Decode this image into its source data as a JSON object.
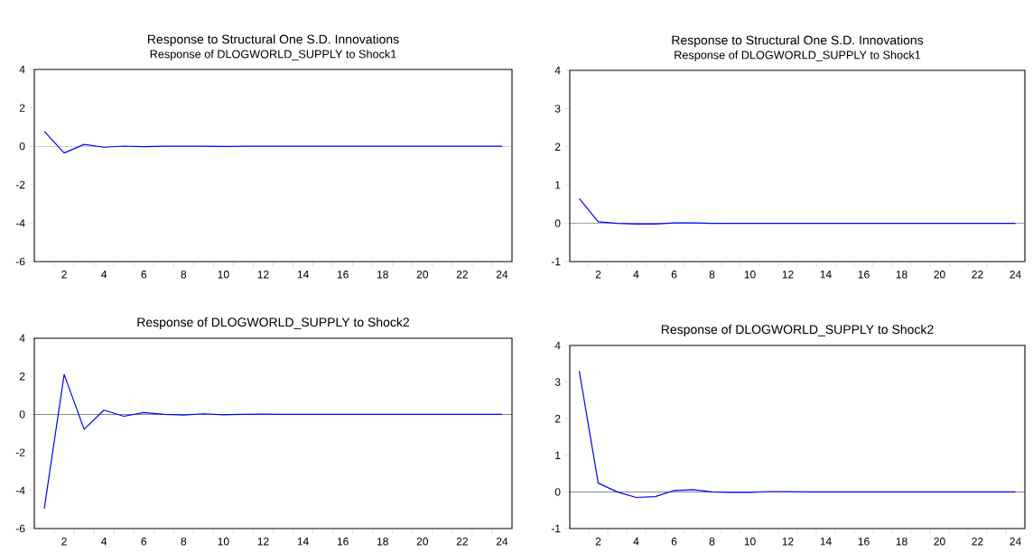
{
  "chart_data": [
    {
      "type": "line",
      "title": "Response to Structural One S.D. Innovations",
      "subtitle": "Response of DLOGWORLD_SUPPLY to Shock1",
      "x": [
        1,
        2,
        3,
        4,
        5,
        6,
        7,
        8,
        9,
        10,
        11,
        12,
        13,
        14,
        15,
        16,
        17,
        18,
        19,
        20,
        21,
        22,
        23,
        24
      ],
      "series": [
        {
          "color": "#0000ff",
          "values": [
            0.78,
            -0.35,
            0.1,
            -0.05,
            0.01,
            -0.02,
            0,
            0,
            0,
            -0.01,
            0,
            0,
            0,
            0,
            0,
            0,
            0,
            0,
            0,
            0,
            0,
            0,
            0,
            0
          ]
        }
      ],
      "xlim": [
        0.5,
        24.5
      ],
      "xticks": [
        {
          "value": 1.5,
          "label": null
        },
        2,
        {
          "value": 2.5,
          "label": null
        },
        {
          "value": 3.5,
          "label": null
        },
        4,
        {
          "value": 4.5,
          "label": null
        },
        {
          "value": 5.5,
          "label": null
        },
        6,
        {
          "value": 6.5,
          "label": null
        },
        {
          "value": 7.5,
          "label": null
        },
        8,
        {
          "value": 8.5,
          "label": null
        },
        {
          "value": 9.5,
          "label": null
        },
        10,
        {
          "value": 10.5,
          "label": null
        },
        {
          "value": 11.5,
          "label": null
        },
        12,
        {
          "value": 12.5,
          "label": null
        },
        {
          "value": 13.5,
          "label": null
        },
        14,
        {
          "value": 14.5,
          "label": null
        },
        {
          "value": 15.5,
          "label": null
        },
        16,
        {
          "value": 16.5,
          "label": null
        },
        {
          "value": 17.5,
          "label": null
        },
        18,
        {
          "value": 18.5,
          "label": null
        },
        {
          "value": 19.5,
          "label": null
        },
        20,
        {
          "value": 20.5,
          "label": null
        },
        {
          "value": 21.5,
          "label": null
        },
        22,
        {
          "value": 22.5,
          "label": null
        },
        {
          "value": 23.5,
          "label": null
        },
        24
      ],
      "ylim": [
        -6,
        4
      ],
      "yticks": [
        -6,
        -4,
        -2,
        0,
        2,
        4
      ],
      "ref_lines": [
        {
          "axis": "y",
          "value": 0,
          "color": "#808080"
        }
      ],
      "grid": false
    },
    {
      "type": "line",
      "title": "Response to Structural One S.D. Innovations",
      "subtitle": "Response of DLOGWORLD_SUPPLY to Shock1",
      "x": [
        1,
        2,
        3,
        4,
        5,
        6,
        7,
        8,
        9,
        10,
        11,
        12,
        13,
        14,
        15,
        16,
        17,
        18,
        19,
        20,
        21,
        22,
        23,
        24
      ],
      "series": [
        {
          "color": "#0000ff",
          "values": [
            0.65,
            0.04,
            0.0,
            -0.02,
            -0.02,
            0.01,
            0.01,
            0,
            0,
            0,
            0,
            0,
            0,
            0,
            0,
            0,
            0,
            0,
            0,
            0,
            0,
            0,
            0,
            0
          ]
        }
      ],
      "xlim": [
        0.5,
        24.5
      ],
      "xticks": [
        {
          "value": 1.5,
          "label": null
        },
        2,
        {
          "value": 2.5,
          "label": null
        },
        {
          "value": 3.5,
          "label": null
        },
        4,
        {
          "value": 4.5,
          "label": null
        },
        {
          "value": 5.5,
          "label": null
        },
        6,
        {
          "value": 6.5,
          "label": null
        },
        {
          "value": 7.5,
          "label": null
        },
        8,
        {
          "value": 8.5,
          "label": null
        },
        {
          "value": 9.5,
          "label": null
        },
        10,
        {
          "value": 10.5,
          "label": null
        },
        {
          "value": 11.5,
          "label": null
        },
        12,
        {
          "value": 12.5,
          "label": null
        },
        {
          "value": 13.5,
          "label": null
        },
        14,
        {
          "value": 14.5,
          "label": null
        },
        {
          "value": 15.5,
          "label": null
        },
        16,
        {
          "value": 16.5,
          "label": null
        },
        {
          "value": 17.5,
          "label": null
        },
        18,
        {
          "value": 18.5,
          "label": null
        },
        {
          "value": 19.5,
          "label": null
        },
        20,
        {
          "value": 20.5,
          "label": null
        },
        {
          "value": 21.5,
          "label": null
        },
        22,
        {
          "value": 22.5,
          "label": null
        },
        {
          "value": 23.5,
          "label": null
        },
        24
      ],
      "ylim": [
        -1,
        4
      ],
      "yticks": [
        -1,
        0,
        1,
        2,
        3,
        4
      ],
      "ref_lines": [
        {
          "axis": "y",
          "value": 0,
          "color": "#404040"
        }
      ],
      "grid": false
    },
    {
      "type": "line",
      "title": "Response of DLOGWORLD_SUPPLY to Shock2",
      "x": [
        1,
        2,
        3,
        4,
        5,
        6,
        7,
        8,
        9,
        10,
        11,
        12,
        13,
        14,
        15,
        16,
        17,
        18,
        19,
        20,
        21,
        22,
        23,
        24
      ],
      "series": [
        {
          "color": "#0000ff",
          "values": [
            -4.95,
            2.1,
            -0.78,
            0.22,
            -0.1,
            0.1,
            0,
            -0.03,
            0.03,
            -0.02,
            0,
            0.01,
            0,
            0,
            0,
            0,
            0,
            0,
            0,
            0,
            0,
            0,
            0,
            0
          ]
        }
      ],
      "xlim": [
        0.5,
        24.5
      ],
      "xticks": [
        {
          "value": 1.5,
          "label": null
        },
        2,
        {
          "value": 2.5,
          "label": null
        },
        {
          "value": 3.5,
          "label": null
        },
        4,
        {
          "value": 4.5,
          "label": null
        },
        {
          "value": 5.5,
          "label": null
        },
        6,
        {
          "value": 6.5,
          "label": null
        },
        {
          "value": 7.5,
          "label": null
        },
        8,
        {
          "value": 8.5,
          "label": null
        },
        {
          "value": 9.5,
          "label": null
        },
        10,
        {
          "value": 10.5,
          "label": null
        },
        {
          "value": 11.5,
          "label": null
        },
        12,
        {
          "value": 12.5,
          "label": null
        },
        {
          "value": 13.5,
          "label": null
        },
        14,
        {
          "value": 14.5,
          "label": null
        },
        {
          "value": 15.5,
          "label": null
        },
        16,
        {
          "value": 16.5,
          "label": null
        },
        {
          "value": 17.5,
          "label": null
        },
        18,
        {
          "value": 18.5,
          "label": null
        },
        {
          "value": 19.5,
          "label": null
        },
        20,
        {
          "value": 20.5,
          "label": null
        },
        {
          "value": 21.5,
          "label": null
        },
        22,
        {
          "value": 22.5,
          "label": null
        },
        {
          "value": 23.5,
          "label": null
        },
        24
      ],
      "ylim": [
        -6,
        4
      ],
      "yticks": [
        -6,
        -4,
        -2,
        0,
        2,
        4
      ],
      "ref_lines": [
        {
          "axis": "y",
          "value": 0,
          "color": "#000000"
        }
      ],
      "grid": false
    },
    {
      "type": "line",
      "title": "Response of DLOGWORLD_SUPPLY to Shock2",
      "x": [
        1,
        2,
        3,
        4,
        5,
        6,
        7,
        8,
        9,
        10,
        11,
        12,
        13,
        14,
        15,
        16,
        17,
        18,
        19,
        20,
        21,
        22,
        23,
        24
      ],
      "series": [
        {
          "color": "#0000ff",
          "values": [
            3.3,
            0.24,
            0.0,
            -0.15,
            -0.13,
            0.04,
            0.06,
            0.0,
            -0.01,
            -0.01,
            0.01,
            0.01,
            0,
            0,
            0,
            0,
            0,
            0,
            0,
            0,
            0,
            0,
            0,
            0
          ]
        }
      ],
      "xlim": [
        0.5,
        24.5
      ],
      "xticks": [
        {
          "value": 1.5,
          "label": null
        },
        2,
        {
          "value": 2.5,
          "label": null
        },
        {
          "value": 3.5,
          "label": null
        },
        4,
        {
          "value": 4.5,
          "label": null
        },
        {
          "value": 5.5,
          "label": null
        },
        6,
        {
          "value": 6.5,
          "label": null
        },
        {
          "value": 7.5,
          "label": null
        },
        8,
        {
          "value": 8.5,
          "label": null
        },
        {
          "value": 9.5,
          "label": null
        },
        10,
        {
          "value": 10.5,
          "label": null
        },
        {
          "value": 11.5,
          "label": null
        },
        12,
        {
          "value": 12.5,
          "label": null
        },
        {
          "value": 13.5,
          "label": null
        },
        14,
        {
          "value": 14.5,
          "label": null
        },
        {
          "value": 15.5,
          "label": null
        },
        16,
        {
          "value": 16.5,
          "label": null
        },
        {
          "value": 17.5,
          "label": null
        },
        18,
        {
          "value": 18.5,
          "label": null
        },
        {
          "value": 19.5,
          "label": null
        },
        20,
        {
          "value": 20.5,
          "label": null
        },
        {
          "value": 21.5,
          "label": null
        },
        22,
        {
          "value": 22.5,
          "label": null
        },
        {
          "value": 23.5,
          "label": null
        },
        24
      ],
      "ylim": [
        -1,
        4
      ],
      "yticks": [
        -1,
        0,
        1,
        2,
        3,
        4
      ],
      "ref_lines": [
        {
          "axis": "y",
          "value": 0,
          "color": "#000000"
        }
      ],
      "grid": false
    }
  ]
}
